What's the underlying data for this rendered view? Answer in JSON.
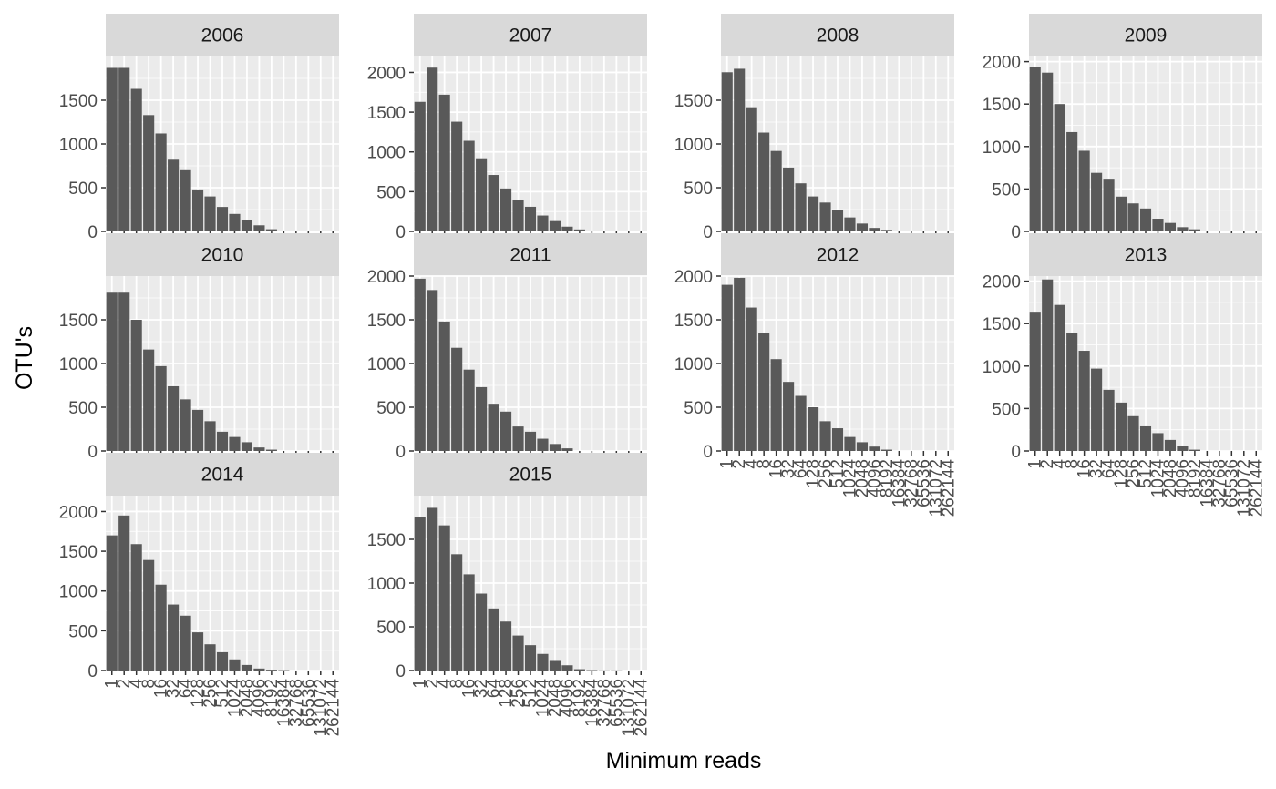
{
  "chart_data": {
    "type": "bar",
    "facet": "year",
    "xlabel": "Minimum reads",
    "ylabel": "OTU's",
    "categories": [
      "1",
      "2",
      "4",
      "8",
      "16",
      "32",
      "64",
      "128",
      "256",
      "512",
      "1024",
      "2048",
      "4096",
      "8192",
      "16384",
      "32768",
      "65536",
      "131072",
      "262144"
    ],
    "panels": [
      {
        "name": "2006",
        "ylim": [
          0,
          2000
        ],
        "yticks": [
          0,
          500,
          1000,
          1500
        ],
        "values": [
          1870,
          1870,
          1630,
          1330,
          1120,
          820,
          700,
          480,
          400,
          280,
          200,
          130,
          70,
          25,
          8,
          2,
          0,
          0,
          0
        ]
      },
      {
        "name": "2007",
        "ylim": [
          0,
          2200
        ],
        "yticks": [
          0,
          500,
          1000,
          1500,
          2000
        ],
        "values": [
          1630,
          2060,
          1720,
          1380,
          1140,
          920,
          710,
          540,
          400,
          310,
          200,
          130,
          60,
          25,
          5,
          0,
          0,
          0,
          0
        ]
      },
      {
        "name": "2008",
        "ylim": [
          0,
          2000
        ],
        "yticks": [
          0,
          500,
          1000,
          1500
        ],
        "values": [
          1820,
          1860,
          1420,
          1130,
          920,
          730,
          550,
          400,
          330,
          240,
          160,
          90,
          40,
          18,
          5,
          0,
          0,
          0,
          0
        ]
      },
      {
        "name": "2009",
        "ylim": [
          0,
          2060
        ],
        "yticks": [
          0,
          500,
          1000,
          1500,
          2000
        ],
        "values": [
          1940,
          1870,
          1500,
          1170,
          950,
          690,
          610,
          410,
          330,
          270,
          150,
          100,
          50,
          25,
          10,
          0,
          0,
          0,
          0
        ]
      },
      {
        "name": "2010",
        "ylim": [
          0,
          2000
        ],
        "yticks": [
          0,
          500,
          1000,
          1500
        ],
        "values": [
          1810,
          1810,
          1500,
          1160,
          970,
          740,
          590,
          470,
          340,
          220,
          160,
          100,
          40,
          15,
          0,
          0,
          0,
          0,
          0
        ]
      },
      {
        "name": "2011",
        "ylim": [
          0,
          2000
        ],
        "yticks": [
          0,
          500,
          1000,
          1500,
          2000
        ],
        "values": [
          1970,
          1840,
          1480,
          1180,
          930,
          730,
          540,
          450,
          280,
          220,
          140,
          80,
          30,
          0,
          0,
          0,
          0,
          0,
          0
        ]
      },
      {
        "name": "2012",
        "ylim": [
          0,
          2000
        ],
        "yticks": [
          0,
          500,
          1000,
          1500,
          2000
        ],
        "values": [
          1900,
          1980,
          1640,
          1350,
          1050,
          790,
          630,
          500,
          340,
          260,
          160,
          100,
          50,
          15,
          0,
          0,
          0,
          0,
          0
        ]
      },
      {
        "name": "2013",
        "ylim": [
          0,
          2060
        ],
        "yticks": [
          0,
          500,
          1000,
          1500,
          2000
        ],
        "values": [
          1640,
          2020,
          1720,
          1390,
          1180,
          970,
          720,
          570,
          410,
          290,
          210,
          130,
          60,
          15,
          0,
          0,
          0,
          0,
          0
        ]
      },
      {
        "name": "2014",
        "ylim": [
          0,
          2200
        ],
        "yticks": [
          0,
          500,
          1000,
          1500,
          2000
        ],
        "values": [
          1700,
          1950,
          1590,
          1390,
          1080,
          830,
          690,
          480,
          330,
          230,
          140,
          70,
          25,
          10,
          5,
          0,
          0,
          0,
          0
        ]
      },
      {
        "name": "2015",
        "ylim": [
          0,
          2000
        ],
        "yticks": [
          0,
          500,
          1000,
          1500
        ],
        "values": [
          1760,
          1860,
          1660,
          1330,
          1100,
          880,
          710,
          560,
          400,
          290,
          190,
          120,
          60,
          15,
          5,
          2,
          2,
          0,
          0
        ]
      }
    ]
  }
}
